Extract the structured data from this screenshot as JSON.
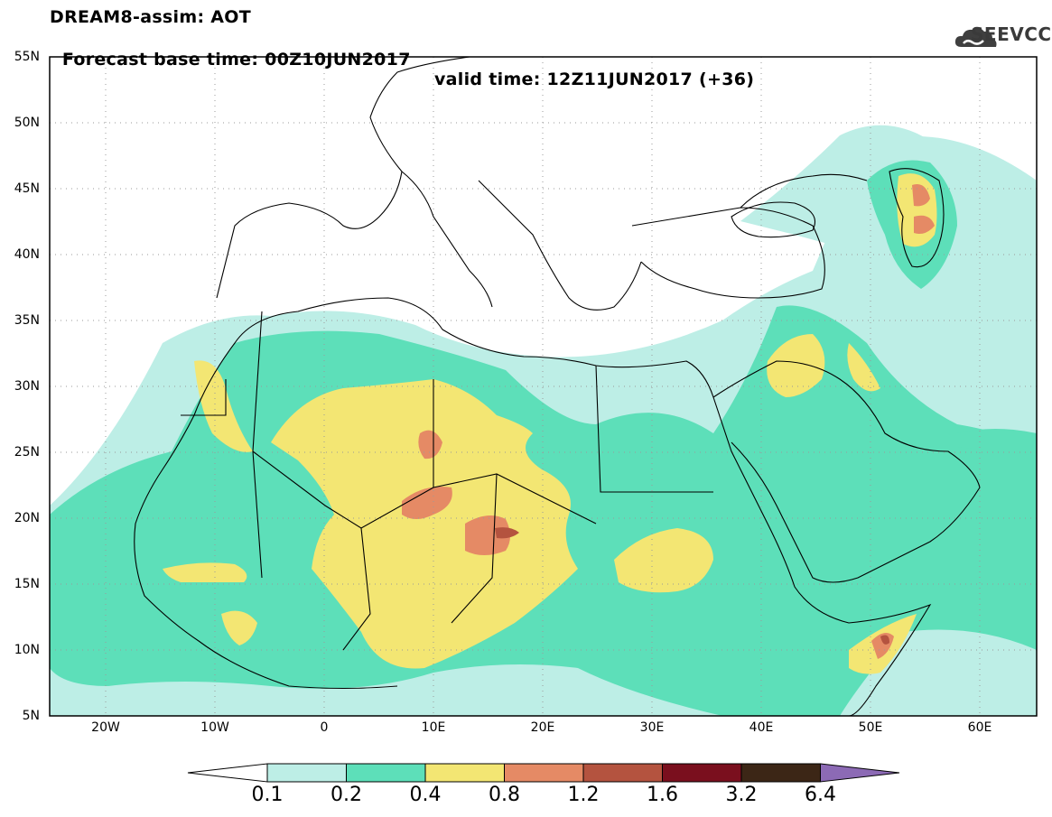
{
  "header": {
    "title": "DREAM8-assim: AOT",
    "base_time": "Forecast base time: 00Z10JUN2017",
    "valid_time": "valid time: 12Z11JUN2017 (+36)",
    "logo_text": "SEEVCCC"
  },
  "axes": {
    "lat_labels": [
      "55N",
      "50N",
      "45N",
      "40N",
      "35N",
      "30N",
      "25N",
      "20N",
      "15N",
      "10N",
      "5N"
    ],
    "lon_labels": [
      "20W",
      "10W",
      "0",
      "10E",
      "20E",
      "30E",
      "40E",
      "50E",
      "60E"
    ]
  },
  "colorbar": {
    "labels": [
      "0.1",
      "0.2",
      "0.4",
      "0.8",
      "1.2",
      "1.6",
      "3.2",
      "6.4"
    ],
    "colors": [
      "#ffffff",
      "#bdeee6",
      "#5ddfb9",
      "#f3e673",
      "#e58a65",
      "#b4533f",
      "#7a0f1e",
      "#3c2616",
      "#8c6ab5"
    ]
  },
  "map_colors": {
    "land_outline": "#000000",
    "grid": "#9a9a9a"
  }
}
